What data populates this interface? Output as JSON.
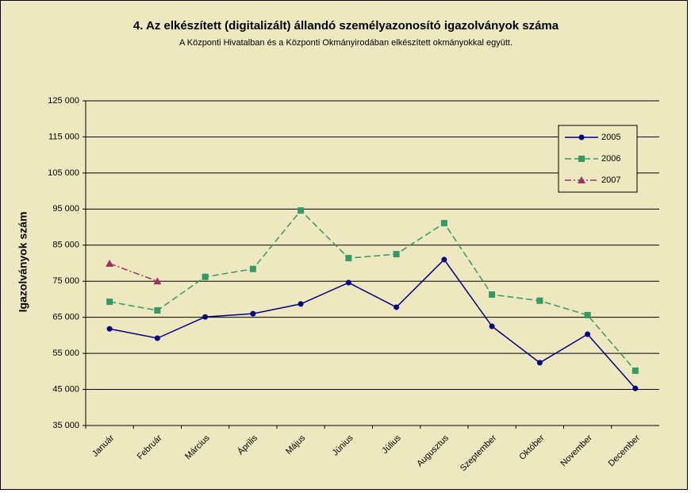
{
  "chart_data": {
    "type": "line",
    "title": "4. Az elkészített (digitalizált) állandó személyazonosító igazolványok száma",
    "subtitle": "A Központi Hivatalban és a Központi Okmányirodában elkészített okmányokkal együtt.",
    "y_label": "Igazolványok szám",
    "categories": [
      "Január",
      "Február",
      "Március",
      "Április",
      "Május",
      "Június",
      "Július",
      "Augusztus",
      "Szeptember",
      "Október",
      "November",
      "December"
    ],
    "series": [
      {
        "name": "2005",
        "color": "#000080",
        "line_style": "solid",
        "marker": "circle",
        "values": [
          61800,
          59200,
          65100,
          66000,
          68700,
          74600,
          67800,
          81000,
          62500,
          52400,
          60300,
          45300
        ]
      },
      {
        "name": "2006",
        "color": "#339966",
        "line_style": "dashed",
        "marker": "square",
        "values": [
          69300,
          66900,
          76200,
          78400,
          94600,
          81400,
          82500,
          91100,
          71300,
          69600,
          65600,
          50200
        ]
      },
      {
        "name": "2007",
        "color": "#993366",
        "line_style": "dashdot",
        "marker": "triangle",
        "values": [
          79900,
          75000,
          null,
          null,
          null,
          null,
          null,
          null,
          null,
          null,
          null,
          null
        ]
      }
    ],
    "ylim": [
      35000,
      125000
    ],
    "yticks": [
      {
        "value": 35000,
        "label": "35 000"
      },
      {
        "value": 45000,
        "label": "45 000"
      },
      {
        "value": 55000,
        "label": "55 000"
      },
      {
        "value": 65000,
        "label": "65 000"
      },
      {
        "value": 75000,
        "label": "75 000"
      },
      {
        "value": 85000,
        "label": "85 000"
      },
      {
        "value": 95000,
        "label": "95 000"
      },
      {
        "value": 105000,
        "label": "105 000"
      },
      {
        "value": 115000,
        "label": "115 000"
      },
      {
        "value": 125000,
        "label": "125 000"
      }
    ],
    "grid": true,
    "legend": "top-right"
  }
}
